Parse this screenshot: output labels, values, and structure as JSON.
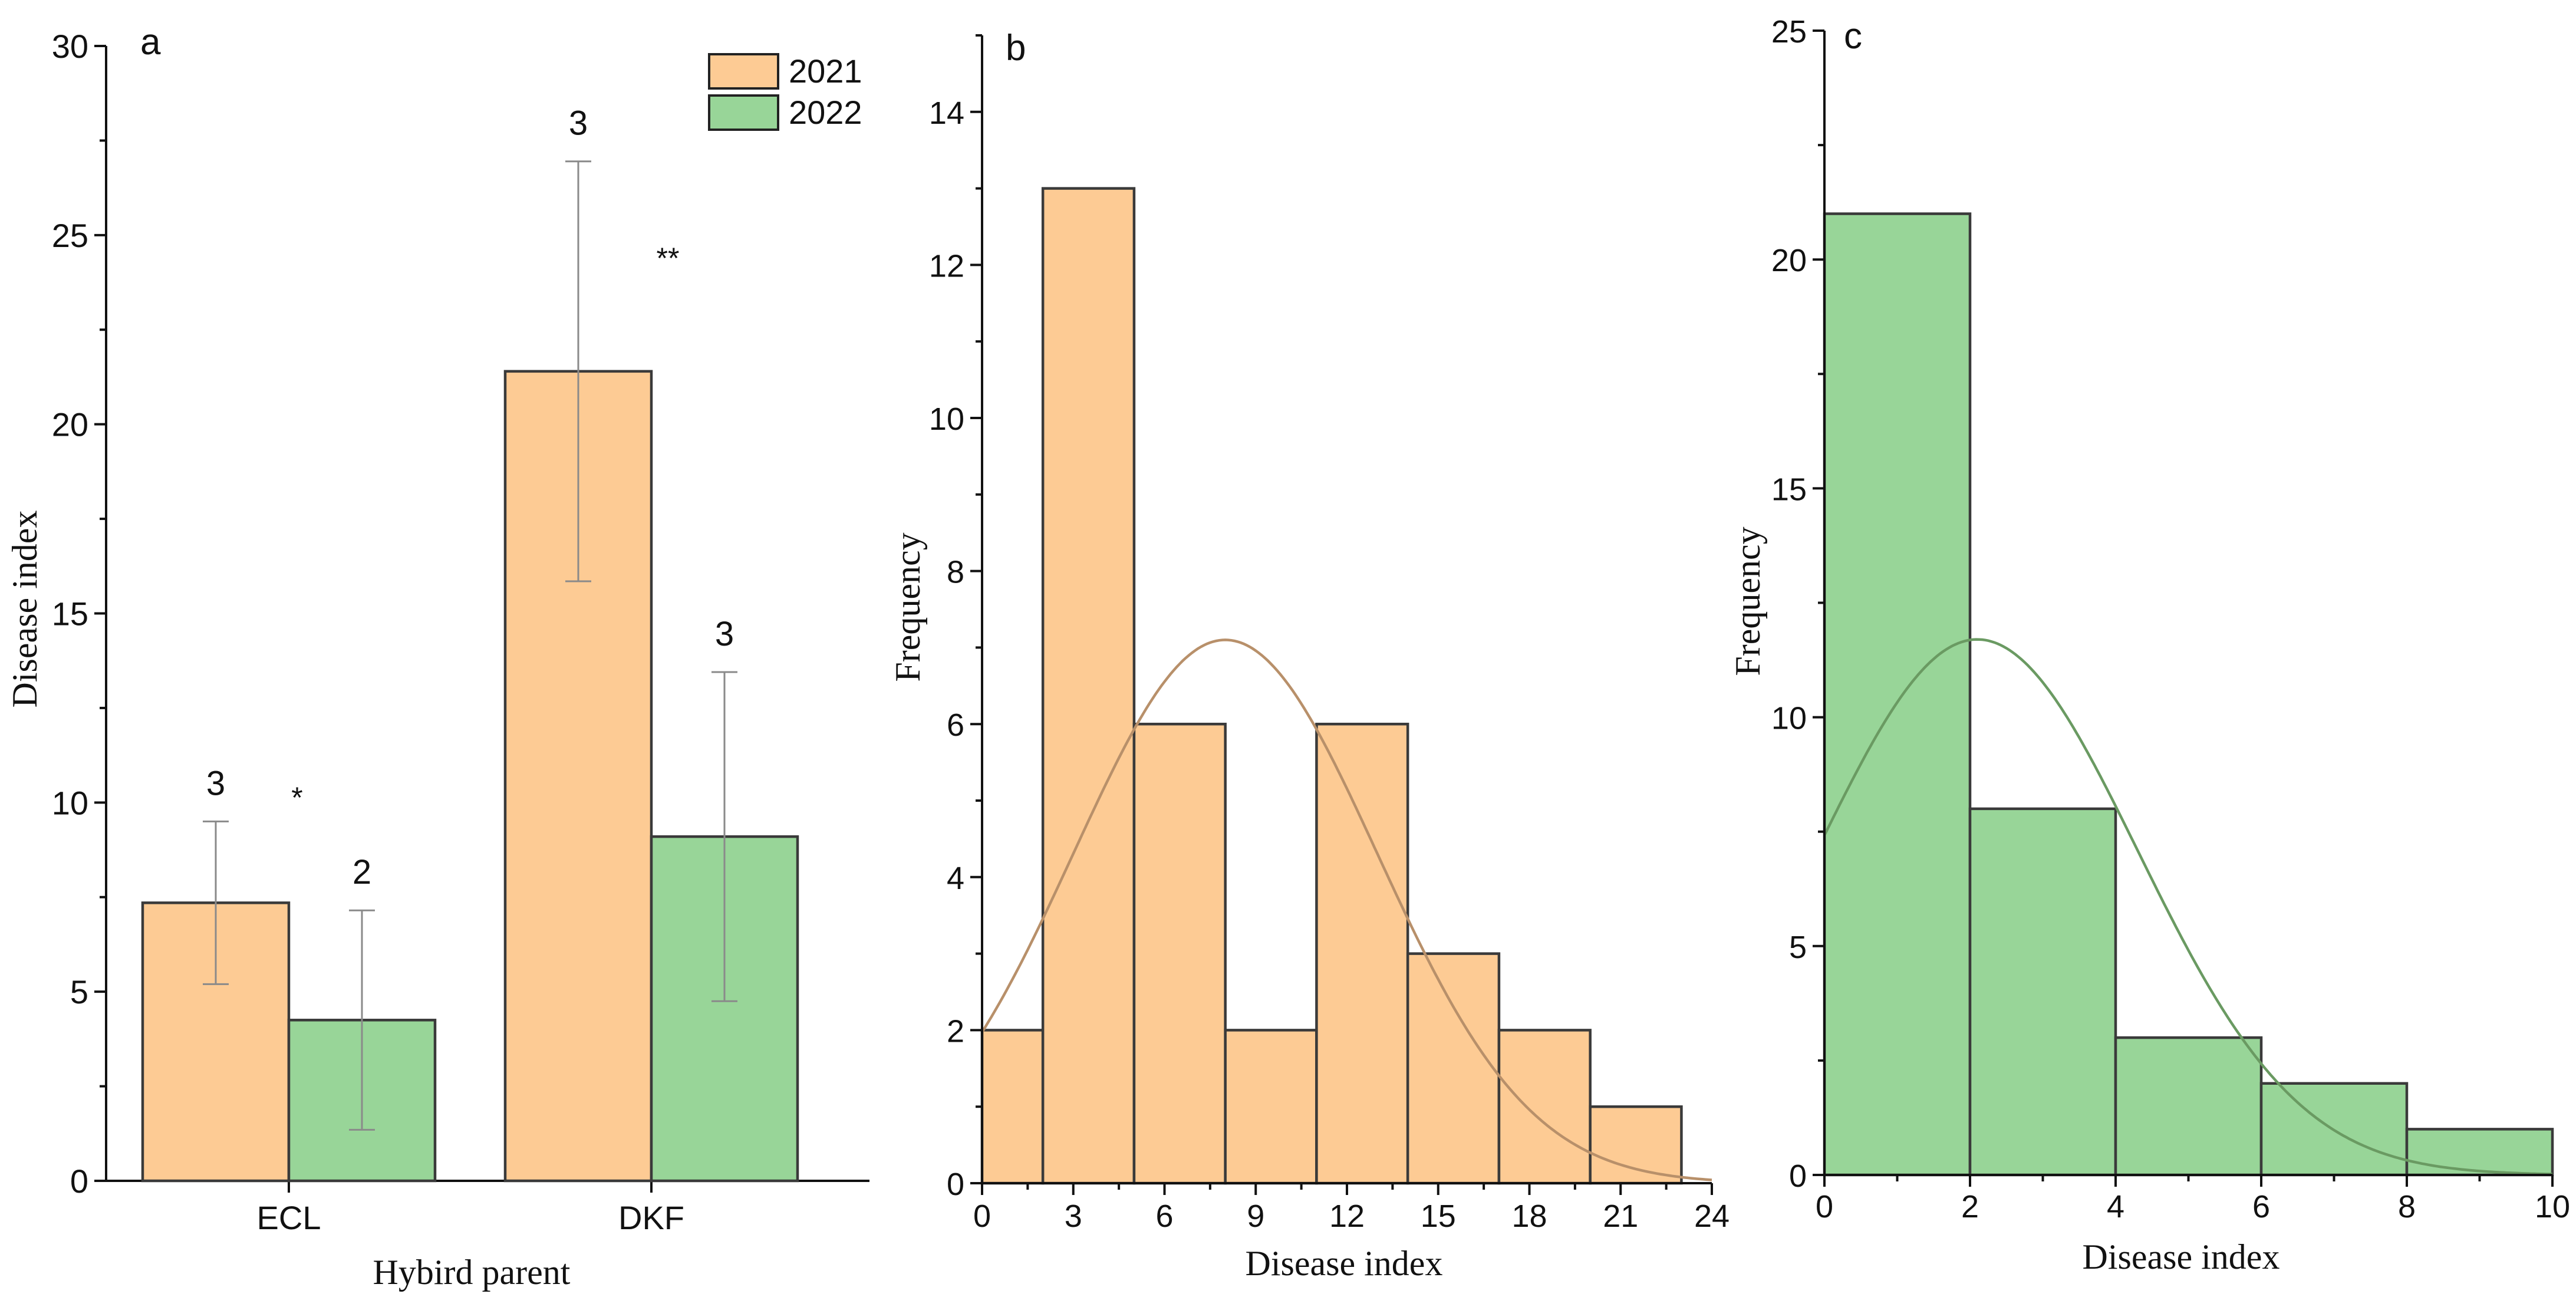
{
  "colors": {
    "y2021": "#fdcb94",
    "y2022": "#98d598",
    "curve_b": "#b8906a",
    "curve_c": "#6a9a62",
    "outline": "#3a3a3a"
  },
  "chart_data": [
    {
      "panel": "a",
      "type": "bar",
      "xlabel": "Hybird parent",
      "ylabel": "Disease index",
      "ylim": [
        0,
        30
      ],
      "yticks": [
        "0",
        "5",
        "10",
        "15",
        "20",
        "25",
        "30"
      ],
      "categories": [
        "ECL",
        "DKF"
      ],
      "series": [
        {
          "name": "2021",
          "values": [
            7.35,
            21.4
          ],
          "error": [
            2.15,
            5.55
          ],
          "n_labels": [
            "3",
            "3"
          ]
        },
        {
          "name": "2022",
          "values": [
            4.25,
            9.1
          ],
          "error": [
            2.9,
            4.35
          ],
          "n_labels": [
            "2",
            "3"
          ]
        }
      ],
      "significance": [
        "*",
        "**"
      ],
      "legend_position": "top-right"
    },
    {
      "panel": "b",
      "type": "bar",
      "subtype": "histogram",
      "xlabel": "Disease index",
      "ylabel": "Frequency",
      "xlim": [
        0,
        24
      ],
      "ylim": [
        0,
        15
      ],
      "xticks": [
        "0",
        "3",
        "6",
        "9",
        "12",
        "15",
        "18",
        "21",
        "24"
      ],
      "yticks": [
        "0",
        "2",
        "4",
        "6",
        "8",
        "10",
        "12",
        "14"
      ],
      "bins": [
        [
          0,
          2
        ],
        [
          2,
          5
        ],
        [
          5,
          8
        ],
        [
          8,
          11
        ],
        [
          11,
          14
        ],
        [
          14,
          17
        ],
        [
          17,
          20
        ],
        [
          20,
          23
        ]
      ],
      "values": [
        2,
        13,
        6,
        2,
        6,
        3,
        2,
        1
      ],
      "normal_fit": {
        "peak_x": 8,
        "peak_y": 7.1,
        "sigma": 5.0
      }
    },
    {
      "panel": "c",
      "type": "bar",
      "subtype": "histogram",
      "xlabel": "Disease index",
      "ylabel": "Frequency",
      "xlim": [
        0,
        10
      ],
      "ylim": [
        0,
        25
      ],
      "xticks": [
        "0",
        "2",
        "4",
        "6",
        "8",
        "10"
      ],
      "yticks": [
        "0",
        "5",
        "10",
        "15",
        "20",
        "25"
      ],
      "bins": [
        [
          0,
          2
        ],
        [
          2,
          4
        ],
        [
          4,
          6
        ],
        [
          6,
          8
        ],
        [
          8,
          10
        ]
      ],
      "values": [
        21,
        8,
        3,
        2,
        1
      ],
      "normal_fit": {
        "peak_x": 2.1,
        "peak_y": 11.7,
        "sigma": 2.2
      }
    }
  ]
}
